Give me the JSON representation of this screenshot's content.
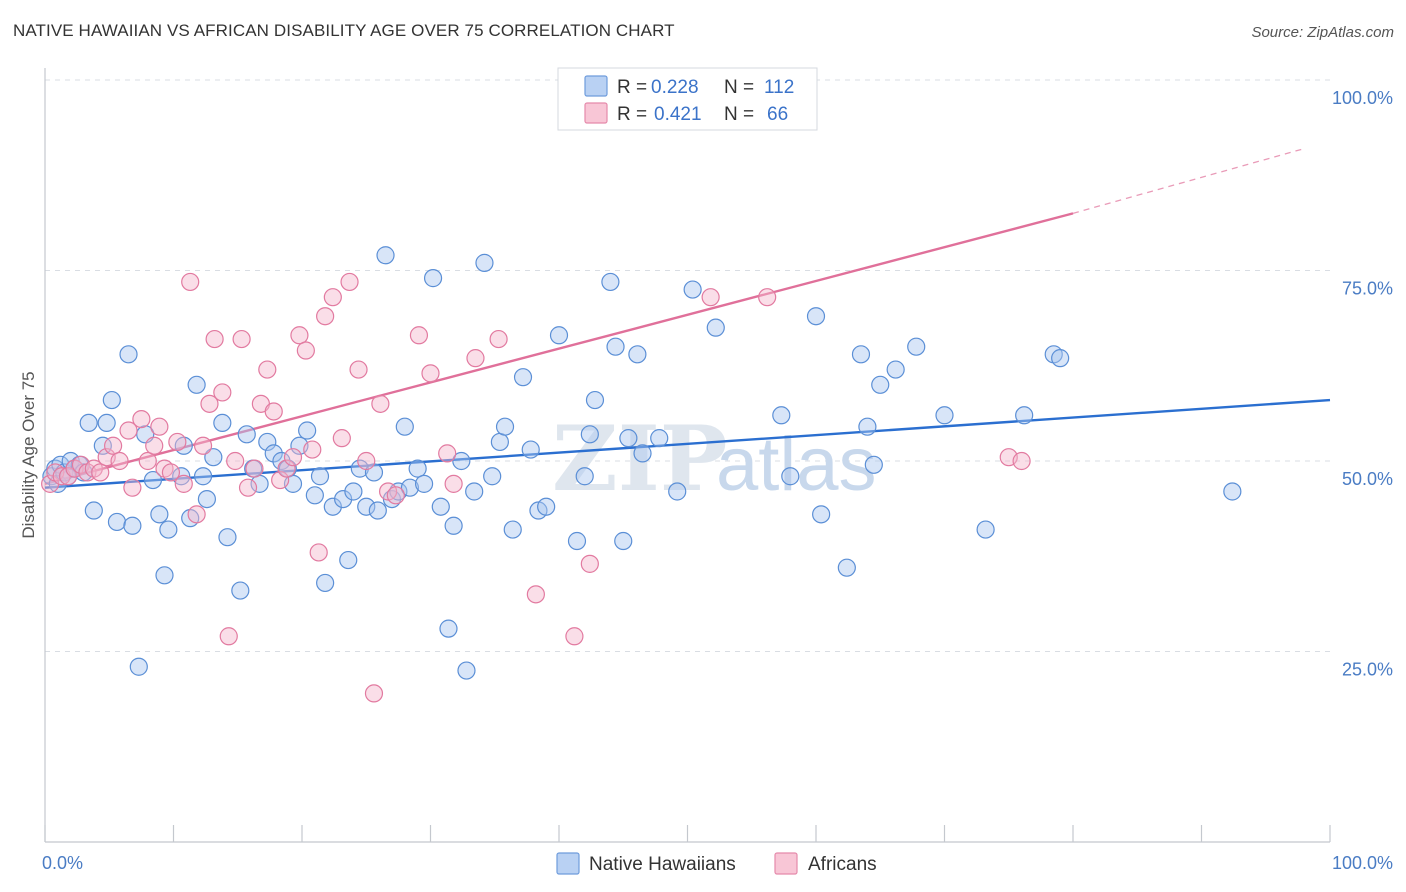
{
  "title": "NATIVE HAWAIIAN VS AFRICAN DISABILITY AGE OVER 75 CORRELATION CHART",
  "source": "Source: ZipAtlas.com",
  "watermark": {
    "zip": "ZIP",
    "atlas": "atlas"
  },
  "colors": {
    "blue_fill": "#a9c6f0",
    "blue_stroke": "#5b8fd6",
    "blue_line": "#2b6fd0",
    "pink_fill": "#f5b6cb",
    "pink_stroke": "#e27aa0",
    "pink_line": "#e0709a",
    "tick_label": "#4a7cc4",
    "grid": "#d9dde3"
  },
  "legend": {
    "rows": [
      {
        "r_label": "R =",
        "r_value": "0.228",
        "n_label": "N =",
        "n_value": "112"
      },
      {
        "r_label": "R =",
        "r_value": "0.421",
        "n_label": "N =",
        "n_value": "66"
      }
    ]
  },
  "chart_data": {
    "type": "scatter",
    "title": "NATIVE HAWAIIAN VS AFRICAN DISABILITY AGE OVER 75 CORRELATION CHART",
    "xlabel": "",
    "ylabel": "Disability Age Over 75",
    "xlim": [
      0,
      100
    ],
    "ylim": [
      0,
      100
    ],
    "x_tick_labels": [
      "0.0%",
      "100.0%"
    ],
    "y_ticks": [
      25,
      50,
      75,
      100
    ],
    "y_tick_labels": [
      "25.0%",
      "50.0%",
      "75.0%",
      "100.0%"
    ],
    "grid": true,
    "legend_position": "top-center",
    "series": [
      {
        "name": "Native Hawaiians",
        "color": "#5b8fd6",
        "r": 0.228,
        "n": 112,
        "trend": {
          "x0": 0,
          "y0": 46.5,
          "x1": 100,
          "y1": 58.0
        },
        "points": [
          [
            0.5,
            48
          ],
          [
            0.8,
            49
          ],
          [
            1.0,
            47
          ],
          [
            1.2,
            49.5
          ],
          [
            1.5,
            48.5
          ],
          [
            1.8,
            48
          ],
          [
            2.0,
            50
          ],
          [
            2.3,
            49
          ],
          [
            2.7,
            49.5
          ],
          [
            3.0,
            48.5
          ],
          [
            3.4,
            55
          ],
          [
            3.8,
            43.5
          ],
          [
            4.5,
            52
          ],
          [
            4.8,
            55
          ],
          [
            5.2,
            58
          ],
          [
            5.6,
            42
          ],
          [
            6.5,
            64
          ],
          [
            6.8,
            41.5
          ],
          [
            7.3,
            23
          ],
          [
            7.8,
            53.5
          ],
          [
            8.4,
            47.5
          ],
          [
            8.9,
            43
          ],
          [
            9.3,
            35
          ],
          [
            9.6,
            41
          ],
          [
            10.6,
            48
          ],
          [
            10.8,
            52
          ],
          [
            11.3,
            42.5
          ],
          [
            11.8,
            60
          ],
          [
            12.3,
            48
          ],
          [
            12.6,
            45
          ],
          [
            13.1,
            50.5
          ],
          [
            13.8,
            55
          ],
          [
            14.2,
            40
          ],
          [
            15.2,
            33
          ],
          [
            15.7,
            53.5
          ],
          [
            16.2,
            49
          ],
          [
            16.7,
            47
          ],
          [
            17.3,
            52.5
          ],
          [
            17.8,
            51
          ],
          [
            18.4,
            50
          ],
          [
            18.9,
            49
          ],
          [
            19.3,
            47
          ],
          [
            19.8,
            52
          ],
          [
            20.4,
            54
          ],
          [
            21.0,
            45.5
          ],
          [
            21.4,
            48
          ],
          [
            21.8,
            34
          ],
          [
            22.4,
            44
          ],
          [
            23.2,
            45
          ],
          [
            23.6,
            37
          ],
          [
            24.0,
            46
          ],
          [
            24.5,
            49
          ],
          [
            25.0,
            44
          ],
          [
            25.6,
            48.5
          ],
          [
            25.9,
            43.5
          ],
          [
            26.5,
            77
          ],
          [
            27.0,
            45
          ],
          [
            27.5,
            46
          ],
          [
            28.0,
            54.5
          ],
          [
            28.4,
            46.5
          ],
          [
            29.0,
            49
          ],
          [
            29.5,
            47
          ],
          [
            30.2,
            74
          ],
          [
            30.8,
            44
          ],
          [
            31.4,
            28
          ],
          [
            31.8,
            41.5
          ],
          [
            32.4,
            50
          ],
          [
            32.8,
            22.5
          ],
          [
            33.4,
            46
          ],
          [
            34.2,
            76
          ],
          [
            34.8,
            48
          ],
          [
            35.4,
            52.5
          ],
          [
            35.8,
            54.5
          ],
          [
            36.4,
            41
          ],
          [
            37.2,
            61
          ],
          [
            37.8,
            51.5
          ],
          [
            38.4,
            43.5
          ],
          [
            39.0,
            44
          ],
          [
            40.0,
            66.5
          ],
          [
            41.4,
            39.5
          ],
          [
            42.0,
            48
          ],
          [
            42.4,
            53.5
          ],
          [
            42.8,
            58
          ],
          [
            44.0,
            73.5
          ],
          [
            44.4,
            65
          ],
          [
            45.0,
            39.5
          ],
          [
            45.4,
            53
          ],
          [
            46.1,
            64
          ],
          [
            46.5,
            51
          ],
          [
            47.8,
            53
          ],
          [
            49.2,
            46
          ],
          [
            50.4,
            72.5
          ],
          [
            52.2,
            67.5
          ],
          [
            57.3,
            56
          ],
          [
            58.0,
            48
          ],
          [
            60.0,
            69
          ],
          [
            60.4,
            43
          ],
          [
            62.4,
            36
          ],
          [
            63.5,
            64
          ],
          [
            64.0,
            54.5
          ],
          [
            64.5,
            49.5
          ],
          [
            65.0,
            60
          ],
          [
            66.2,
            62
          ],
          [
            67.8,
            65
          ],
          [
            70.0,
            56
          ],
          [
            73.2,
            41
          ],
          [
            76.2,
            56
          ],
          [
            78.5,
            64
          ],
          [
            79.0,
            63.5
          ],
          [
            92.4,
            46
          ]
        ]
      },
      {
        "name": "Africans",
        "color": "#e27aa0",
        "r": 0.421,
        "n": 66,
        "trend": {
          "x0": 0,
          "y0": 47.0,
          "x1": 80,
          "y1": 82.5,
          "dash_x1": 98,
          "dash_y1": 91.0
        },
        "points": [
          [
            0.4,
            47
          ],
          [
            0.8,
            48.5
          ],
          [
            1.3,
            48
          ],
          [
            1.8,
            48
          ],
          [
            2.3,
            49
          ],
          [
            2.8,
            49.5
          ],
          [
            3.3,
            48.5
          ],
          [
            3.8,
            49
          ],
          [
            4.3,
            48.5
          ],
          [
            4.8,
            50.5
          ],
          [
            5.3,
            52
          ],
          [
            5.8,
            50
          ],
          [
            6.5,
            54
          ],
          [
            6.8,
            46.5
          ],
          [
            7.5,
            55.5
          ],
          [
            8.0,
            50
          ],
          [
            8.5,
            52
          ],
          [
            8.9,
            54.5
          ],
          [
            9.3,
            49
          ],
          [
            9.8,
            48.5
          ],
          [
            10.3,
            52.5
          ],
          [
            10.8,
            47
          ],
          [
            11.3,
            73.5
          ],
          [
            11.8,
            43
          ],
          [
            12.3,
            52
          ],
          [
            12.8,
            57.5
          ],
          [
            13.2,
            66
          ],
          [
            13.8,
            59
          ],
          [
            14.3,
            27
          ],
          [
            14.8,
            50
          ],
          [
            15.3,
            66
          ],
          [
            15.8,
            46.5
          ],
          [
            16.3,
            49
          ],
          [
            16.8,
            57.5
          ],
          [
            17.3,
            62
          ],
          [
            17.8,
            56.5
          ],
          [
            18.3,
            47.5
          ],
          [
            18.8,
            49
          ],
          [
            19.3,
            50.5
          ],
          [
            19.8,
            66.5
          ],
          [
            20.3,
            64.5
          ],
          [
            20.8,
            51.5
          ],
          [
            21.3,
            38
          ],
          [
            21.8,
            69
          ],
          [
            22.4,
            71.5
          ],
          [
            23.1,
            53
          ],
          [
            23.7,
            73.5
          ],
          [
            24.4,
            62
          ],
          [
            25.0,
            50
          ],
          [
            25.6,
            19.5
          ],
          [
            26.1,
            57.5
          ],
          [
            26.7,
            46
          ],
          [
            27.3,
            45.5
          ],
          [
            29.1,
            66.5
          ],
          [
            30.0,
            61.5
          ],
          [
            31.3,
            51
          ],
          [
            31.8,
            47
          ],
          [
            33.5,
            63.5
          ],
          [
            35.3,
            66
          ],
          [
            38.2,
            32.5
          ],
          [
            41.2,
            27
          ],
          [
            42.4,
            36.5
          ],
          [
            51.8,
            71.5
          ],
          [
            56.2,
            71.5
          ],
          [
            75.0,
            50.5
          ],
          [
            76.0,
            50
          ]
        ]
      }
    ]
  },
  "bottom_legend": [
    {
      "label": "Native Hawaiians"
    },
    {
      "label": "Africans"
    }
  ]
}
